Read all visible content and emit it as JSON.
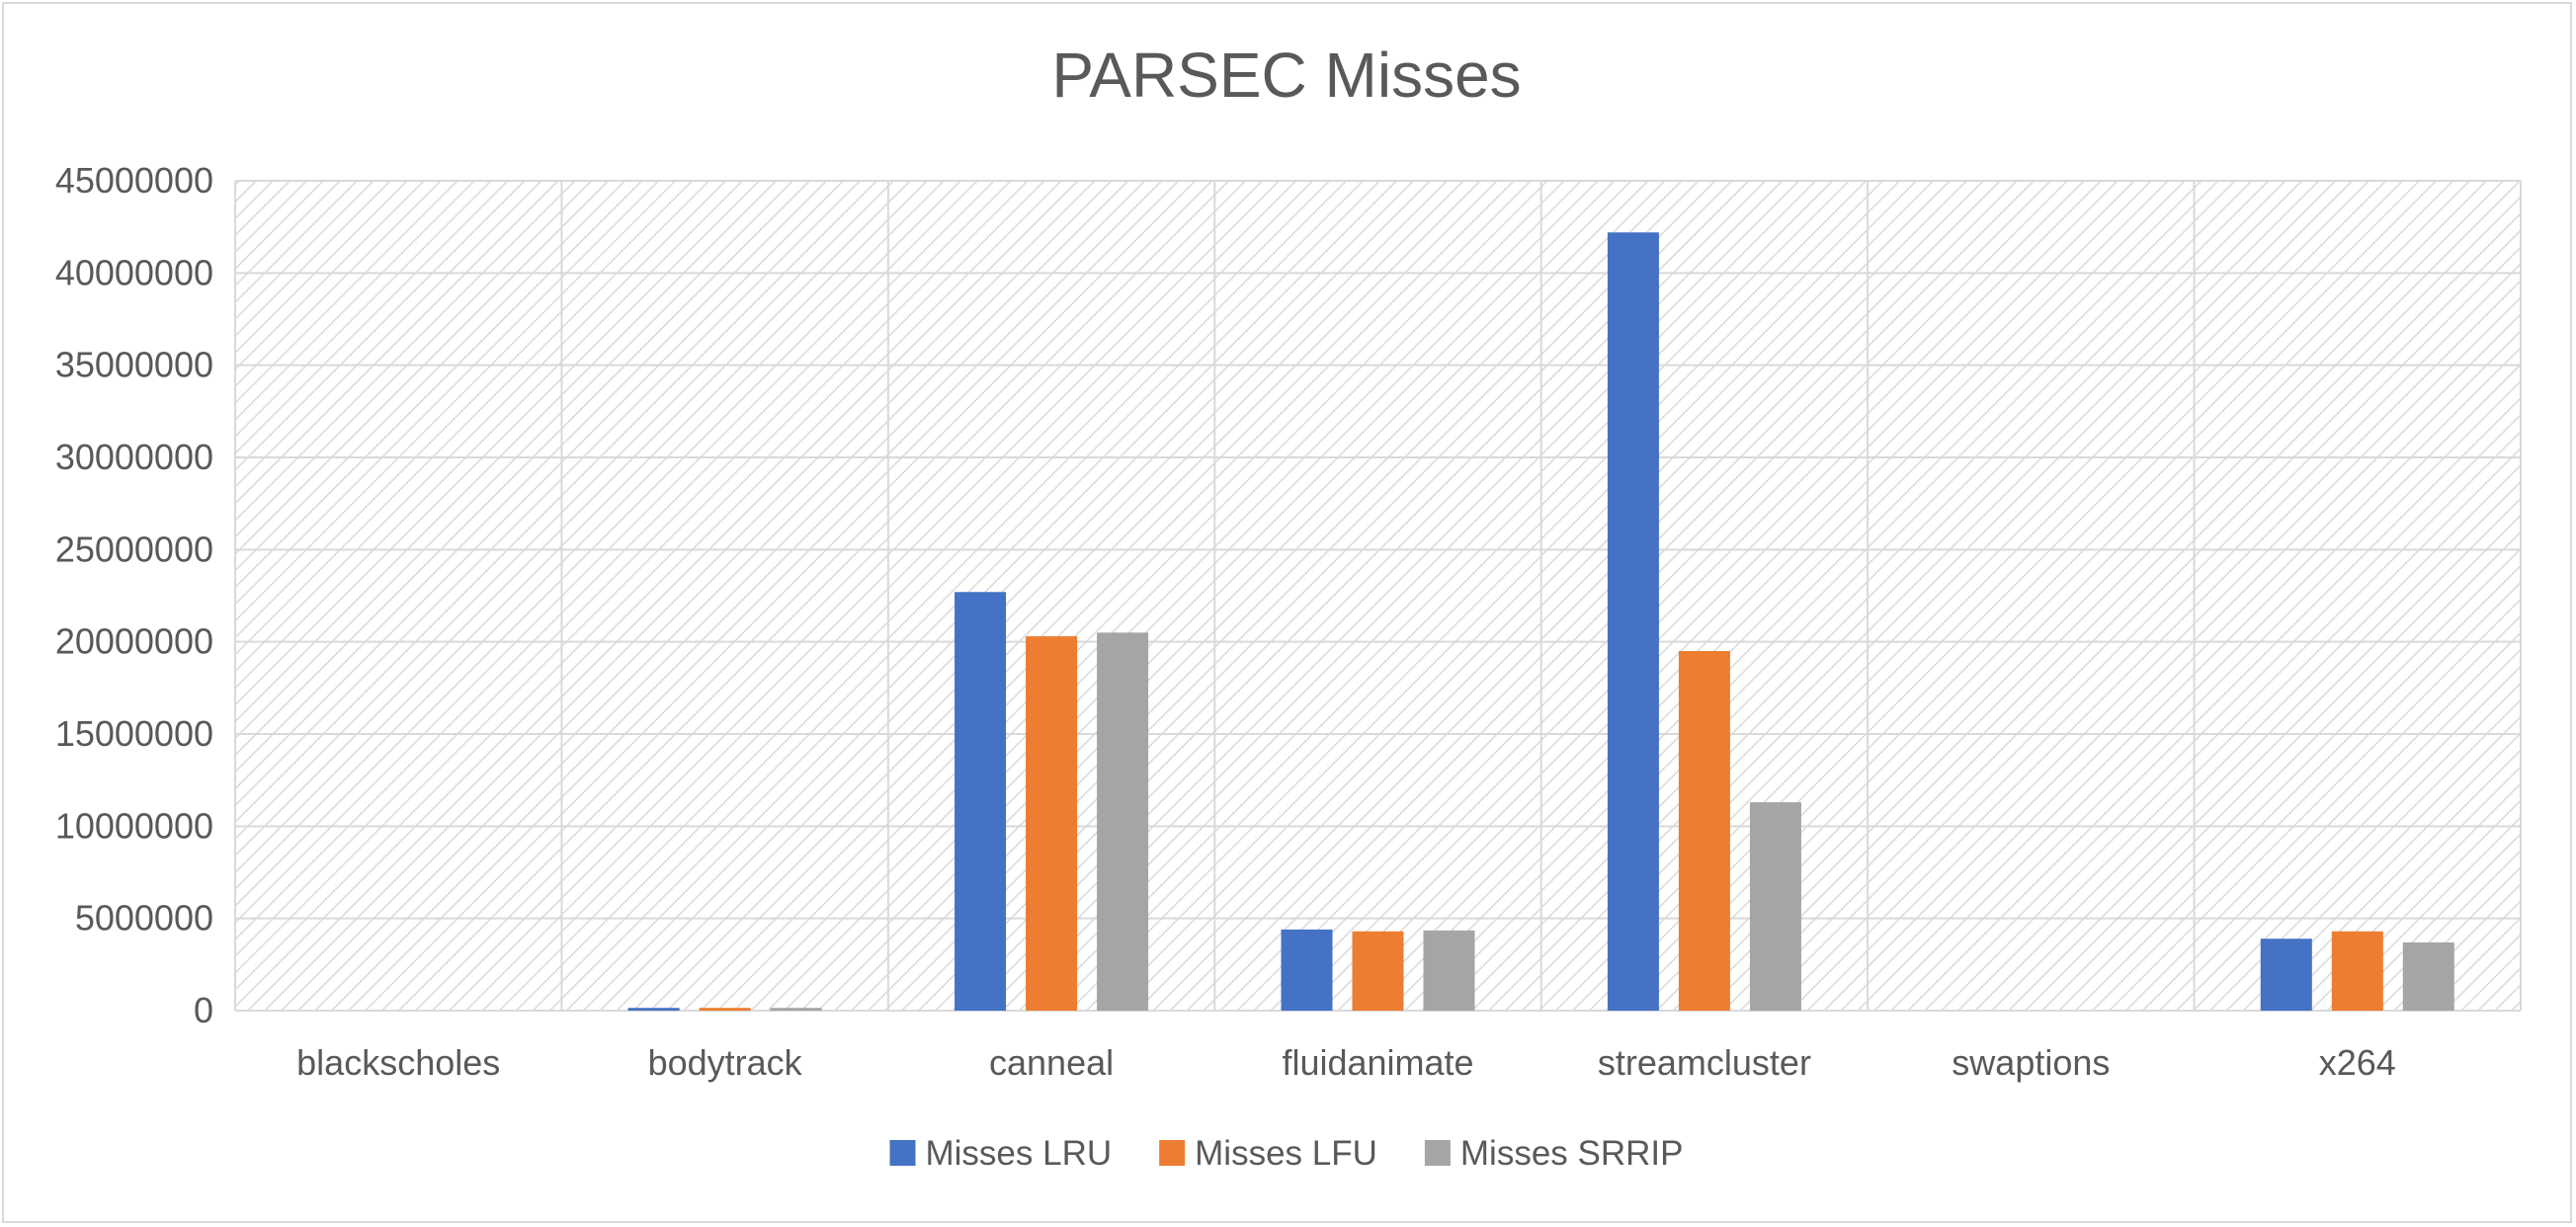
{
  "chart_data": {
    "type": "bar",
    "title": "PARSEC Misses",
    "xlabel": "",
    "ylabel": "",
    "ylim": [
      0,
      45000000
    ],
    "yticks": [
      0,
      5000000,
      10000000,
      15000000,
      20000000,
      25000000,
      30000000,
      35000000,
      40000000,
      45000000
    ],
    "ytick_labels": [
      "0",
      "5000000",
      "10000000",
      "15000000",
      "20000000",
      "25000000",
      "30000000",
      "35000000",
      "40000000",
      "45000000"
    ],
    "categories": [
      "blackscholes",
      "bodytrack",
      "canneal",
      "fluidanimate",
      "streamcluster",
      "swaptions",
      "x264"
    ],
    "series": [
      {
        "name": "Misses LRU",
        "color": "#4472C4",
        "values": [
          0,
          150000,
          22700000,
          4400000,
          42200000,
          0,
          3900000
        ]
      },
      {
        "name": "Misses LFU",
        "color": "#ED7D31",
        "values": [
          0,
          150000,
          20300000,
          4300000,
          19500000,
          0,
          4300000
        ]
      },
      {
        "name": "Misses SRRIP",
        "color": "#A5A5A5",
        "values": [
          0,
          150000,
          20500000,
          4350000,
          11300000,
          0,
          3700000
        ]
      }
    ],
    "grid": true,
    "plot_background": "diagonal hatch",
    "legend_position": "bottom"
  }
}
